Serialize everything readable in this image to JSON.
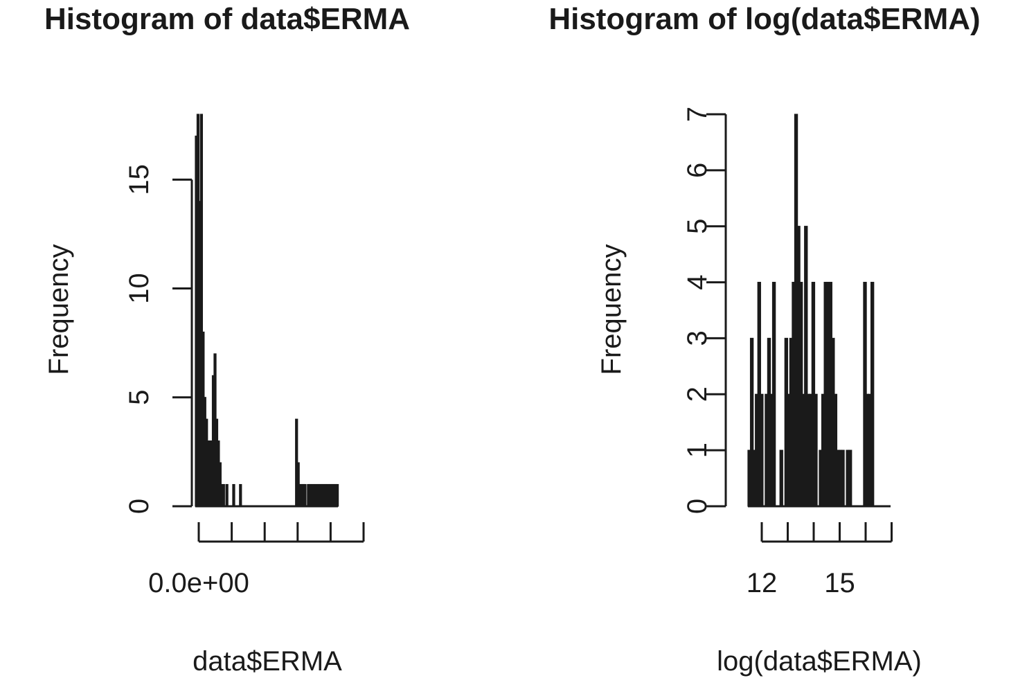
{
  "chart_data": [
    {
      "type": "bar",
      "title": "Histogram of data$ERMA",
      "xlabel": "data$ERMA",
      "ylabel": "Frequency",
      "ylim": [
        0,
        18
      ],
      "yticks": [
        0,
        5,
        10,
        15
      ],
      "xticks": [
        0,
        1,
        2,
        3,
        4,
        5
      ],
      "xtick_labels": [
        "0.0e+00",
        "",
        "",
        "",
        "",
        ""
      ],
      "xlim": [
        0,
        4.2
      ],
      "bin_width": 0.05,
      "values": [
        17,
        18,
        14,
        18,
        8,
        5,
        4,
        3,
        3,
        3,
        6,
        7,
        4,
        3,
        2,
        1,
        1,
        0,
        1,
        0,
        0,
        0,
        1,
        0,
        0,
        0,
        1,
        0,
        0,
        0,
        0,
        0,
        0,
        0,
        0,
        0,
        0,
        0,
        0,
        0,
        0,
        0,
        0,
        0,
        0,
        0,
        0,
        0,
        0,
        0,
        0,
        0,
        0,
        0,
        0,
        0,
        0,
        0,
        0,
        4,
        2,
        1,
        1,
        1,
        1,
        0,
        1,
        1,
        1,
        1,
        1,
        1,
        1,
        1,
        1,
        1,
        1,
        1,
        1,
        1,
        1,
        1,
        1,
        1
      ]
    },
    {
      "type": "bar",
      "title": "Histogram of log(data$ERMA)",
      "xlabel": "log(data$ERMA)",
      "ylabel": "Frequency",
      "ylim": [
        0,
        7
      ],
      "yticks": [
        0,
        1,
        2,
        3,
        4,
        5,
        6,
        7
      ],
      "xticks": [
        12,
        13,
        14,
        15,
        16,
        17
      ],
      "xtick_labels": [
        "12",
        "",
        "",
        "15",
        "",
        ""
      ],
      "xlim": [
        11.8,
        17.6
      ],
      "bin_width": 0.1,
      "values": [
        1,
        3,
        1,
        2,
        4,
        2,
        0,
        2,
        3,
        2,
        4,
        0,
        0,
        1,
        0,
        3,
        2,
        3,
        4,
        7,
        5,
        4,
        2,
        5,
        2,
        2,
        4,
        2,
        0,
        1,
        2,
        4,
        4,
        4,
        3,
        2,
        1,
        1,
        1,
        0,
        1,
        1,
        0,
        0,
        0,
        0,
        0,
        4,
        2,
        2,
        4,
        0,
        0,
        0,
        0,
        0,
        0,
        0
      ]
    }
  ]
}
